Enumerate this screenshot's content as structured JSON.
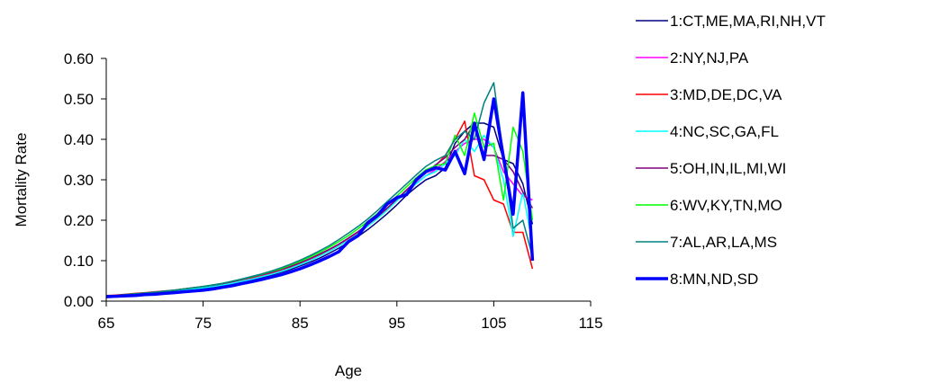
{
  "chart_data": {
    "type": "line",
    "title": "",
    "xlabel": "Age",
    "ylabel": "Mortality Rate",
    "xlim": [
      65,
      115
    ],
    "ylim": [
      0,
      0.6
    ],
    "xticks": [
      65,
      75,
      85,
      95,
      105,
      115
    ],
    "xtick_labels": [
      "65",
      "75",
      "85",
      "95",
      "105",
      "115"
    ],
    "yticks": [
      0,
      0.1,
      0.2,
      0.3,
      0.4,
      0.5,
      0.6
    ],
    "ytick_labels": [
      "0.00",
      "0.10",
      "0.20",
      "0.30",
      "0.40",
      "0.50",
      "0.60"
    ],
    "grid": false,
    "legend_position": "right",
    "x": [
      65,
      66,
      67,
      68,
      69,
      70,
      71,
      72,
      73,
      74,
      75,
      76,
      77,
      78,
      79,
      80,
      81,
      82,
      83,
      84,
      85,
      86,
      87,
      88,
      89,
      90,
      91,
      92,
      93,
      94,
      95,
      96,
      97,
      98,
      99,
      100,
      101,
      102,
      103,
      104,
      105,
      106,
      107,
      108,
      109
    ],
    "series": [
      {
        "name": "1:CT,ME,MA,RI,NH,VT",
        "color": "#000080",
        "width": 1.5,
        "values": [
          0.012,
          0.014,
          0.015,
          0.017,
          0.019,
          0.021,
          0.022,
          0.024,
          0.027,
          0.029,
          0.032,
          0.035,
          0.039,
          0.043,
          0.048,
          0.053,
          0.058,
          0.064,
          0.071,
          0.078,
          0.087,
          0.096,
          0.106,
          0.118,
          0.131,
          0.145,
          0.16,
          0.177,
          0.196,
          0.216,
          0.238,
          0.262,
          0.282,
          0.3,
          0.31,
          0.33,
          0.39,
          0.42,
          0.44,
          0.44,
          0.43,
          0.35,
          0.34,
          0.29,
          0.19
        ]
      },
      {
        "name": "2:NY,NJ,PA",
        "color": "#ff00ff",
        "width": 1.5,
        "values": [
          0.013,
          0.014,
          0.016,
          0.018,
          0.02,
          0.022,
          0.024,
          0.026,
          0.029,
          0.032,
          0.035,
          0.038,
          0.042,
          0.047,
          0.052,
          0.057,
          0.063,
          0.069,
          0.076,
          0.084,
          0.093,
          0.103,
          0.114,
          0.126,
          0.139,
          0.154,
          0.17,
          0.188,
          0.207,
          0.228,
          0.25,
          0.272,
          0.292,
          0.31,
          0.325,
          0.345,
          0.37,
          0.39,
          0.4,
          0.4,
          0.38,
          0.32,
          0.29,
          0.26,
          0.25
        ]
      },
      {
        "name": "3:MD,DE,DC,VA",
        "color": "#ff0000",
        "width": 1.5,
        "values": [
          0.014,
          0.015,
          0.017,
          0.019,
          0.021,
          0.023,
          0.025,
          0.027,
          0.03,
          0.033,
          0.036,
          0.039,
          0.043,
          0.048,
          0.053,
          0.058,
          0.064,
          0.07,
          0.077,
          0.085,
          0.094,
          0.104,
          0.115,
          0.127,
          0.14,
          0.155,
          0.171,
          0.189,
          0.208,
          0.229,
          0.251,
          0.275,
          0.297,
          0.318,
          0.335,
          0.36,
          0.4,
          0.445,
          0.31,
          0.3,
          0.25,
          0.24,
          0.17,
          0.17,
          0.08
        ]
      },
      {
        "name": "4:NC,SC,GA,FL",
        "color": "#00ffff",
        "width": 1.5,
        "values": [
          0.011,
          0.012,
          0.014,
          0.016,
          0.018,
          0.02,
          0.022,
          0.024,
          0.027,
          0.03,
          0.033,
          0.036,
          0.04,
          0.044,
          0.049,
          0.054,
          0.06,
          0.066,
          0.073,
          0.081,
          0.09,
          0.1,
          0.111,
          0.123,
          0.136,
          0.151,
          0.167,
          0.185,
          0.204,
          0.225,
          0.248,
          0.27,
          0.29,
          0.31,
          0.32,
          0.34,
          0.36,
          0.4,
          0.37,
          0.41,
          0.38,
          0.3,
          0.16,
          0.27,
          0.14
        ]
      },
      {
        "name": "5:OH,IN,IL,MI,WI",
        "color": "#800080",
        "width": 1.5,
        "values": [
          0.013,
          0.014,
          0.016,
          0.018,
          0.02,
          0.022,
          0.024,
          0.027,
          0.03,
          0.033,
          0.036,
          0.039,
          0.043,
          0.048,
          0.053,
          0.059,
          0.065,
          0.071,
          0.078,
          0.086,
          0.095,
          0.105,
          0.116,
          0.128,
          0.141,
          0.156,
          0.172,
          0.19,
          0.209,
          0.23,
          0.252,
          0.275,
          0.297,
          0.318,
          0.337,
          0.355,
          0.38,
          0.4,
          0.44,
          0.36,
          0.36,
          0.35,
          0.32,
          0.27,
          0.23
        ]
      },
      {
        "name": "6:WV,KY,TN,MO",
        "color": "#00ff00",
        "width": 1.5,
        "values": [
          0.013,
          0.014,
          0.016,
          0.018,
          0.02,
          0.022,
          0.024,
          0.027,
          0.03,
          0.033,
          0.036,
          0.04,
          0.044,
          0.049,
          0.054,
          0.06,
          0.066,
          0.073,
          0.08,
          0.089,
          0.098,
          0.109,
          0.12,
          0.133,
          0.147,
          0.162,
          0.179,
          0.197,
          0.217,
          0.238,
          0.26,
          0.283,
          0.305,
          0.325,
          0.335,
          0.34,
          0.41,
          0.36,
          0.465,
          0.38,
          0.39,
          0.25,
          0.43,
          0.37,
          0.2
        ]
      },
      {
        "name": "7:AL,AR,LA,MS",
        "color": "#008080",
        "width": 1.5,
        "values": [
          0.013,
          0.014,
          0.016,
          0.018,
          0.02,
          0.022,
          0.025,
          0.027,
          0.03,
          0.033,
          0.036,
          0.04,
          0.044,
          0.049,
          0.055,
          0.061,
          0.067,
          0.074,
          0.082,
          0.091,
          0.101,
          0.112,
          0.124,
          0.137,
          0.152,
          0.168,
          0.185,
          0.203,
          0.224,
          0.246,
          0.268,
          0.29,
          0.312,
          0.333,
          0.348,
          0.36,
          0.4,
          0.42,
          0.4,
          0.49,
          0.54,
          0.36,
          0.18,
          0.2,
          0.11
        ]
      },
      {
        "name": "8:MN,ND,SD",
        "color": "#0000ff",
        "width": 3.5,
        "values": [
          0.011,
          0.012,
          0.013,
          0.014,
          0.016,
          0.017,
          0.019,
          0.021,
          0.023,
          0.025,
          0.027,
          0.03,
          0.034,
          0.038,
          0.043,
          0.048,
          0.053,
          0.059,
          0.065,
          0.072,
          0.08,
          0.089,
          0.099,
          0.11,
          0.122,
          0.147,
          0.162,
          0.194,
          0.212,
          0.24,
          0.256,
          0.263,
          0.3,
          0.32,
          0.33,
          0.324,
          0.37,
          0.315,
          0.44,
          0.35,
          0.5,
          0.355,
          0.215,
          0.515,
          0.1
        ]
      }
    ]
  }
}
